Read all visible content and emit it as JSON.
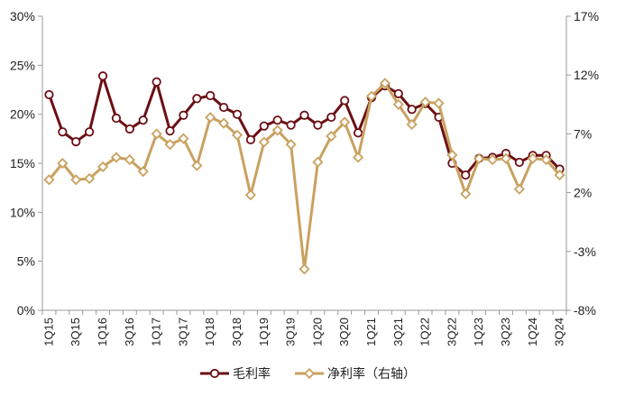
{
  "chart_data": {
    "type": "line",
    "title": "",
    "xlabel": "",
    "ylabel": "",
    "left_axis": {
      "min": 0,
      "max": 30,
      "step": 5,
      "ticks": [
        "0%",
        "5%",
        "10%",
        "15%",
        "20%",
        "25%",
        "30%"
      ]
    },
    "right_axis": {
      "min": -8,
      "max": 17,
      "step": 5,
      "ticks": [
        "-8%",
        "-3%",
        "2%",
        "7%",
        "12%",
        "17%"
      ]
    },
    "categories": [
      "1Q15",
      "2Q15",
      "3Q15",
      "4Q15",
      "1Q16",
      "2Q16",
      "3Q16",
      "4Q16",
      "1Q17",
      "2Q17",
      "3Q17",
      "4Q17",
      "1Q18",
      "2Q18",
      "3Q18",
      "4Q18",
      "1Q19",
      "2Q19",
      "3Q19",
      "4Q19",
      "1Q20",
      "2Q20",
      "3Q20",
      "4Q20",
      "1Q21",
      "2Q21",
      "3Q21",
      "4Q21",
      "1Q22",
      "2Q22",
      "3Q22",
      "4Q22",
      "1Q23",
      "2Q23",
      "3Q23",
      "4Q23",
      "1Q24",
      "2Q24",
      "3Q24"
    ],
    "x_tick_labels": [
      "1Q15",
      "",
      "3Q15",
      "",
      "1Q16",
      "",
      "3Q16",
      "",
      "1Q17",
      "",
      "3Q17",
      "",
      "1Q18",
      "",
      "3Q18",
      "",
      "1Q19",
      "",
      "3Q19",
      "",
      "1Q20",
      "",
      "3Q20",
      "",
      "1Q21",
      "",
      "3Q21",
      "",
      "1Q22",
      "",
      "3Q22",
      "",
      "1Q23",
      "",
      "3Q23",
      "",
      "1Q24",
      "",
      "3Q24"
    ],
    "series": [
      {
        "name": "毛利率",
        "axis": "left",
        "color": "#6b0f14",
        "marker": "circle",
        "values": [
          22.0,
          18.2,
          17.2,
          18.2,
          23.9,
          19.6,
          18.5,
          19.4,
          23.3,
          18.3,
          19.9,
          21.6,
          21.9,
          20.7,
          20.0,
          17.4,
          18.8,
          19.4,
          18.9,
          19.9,
          18.9,
          19.7,
          21.4,
          18.1,
          21.7,
          22.9,
          22.1,
          20.5,
          21.1,
          19.7,
          15.0,
          13.8,
          15.5,
          15.6,
          16.0,
          15.1,
          15.8,
          15.8,
          14.4
        ]
      },
      {
        "name": "净利率（右轴）",
        "axis": "right",
        "color": "#c9a15f",
        "marker": "diamond",
        "values": [
          3.1,
          4.5,
          3.1,
          3.2,
          4.2,
          5.0,
          4.8,
          3.8,
          7.0,
          6.1,
          6.6,
          4.3,
          8.4,
          7.9,
          6.9,
          1.8,
          6.3,
          7.3,
          6.1,
          -4.5,
          4.6,
          6.8,
          8.0,
          5.0,
          10.2,
          11.3,
          9.5,
          7.8,
          9.7,
          9.6,
          5.2,
          1.9,
          4.9,
          4.8,
          4.9,
          2.3,
          4.9,
          4.8,
          3.5
        ]
      }
    ],
    "legend_position": "bottom-center",
    "grid": false
  }
}
